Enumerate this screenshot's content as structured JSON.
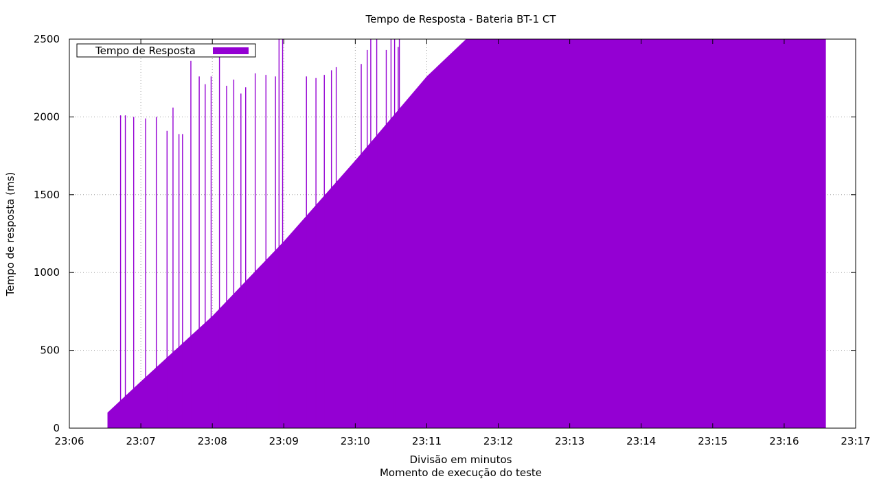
{
  "chart_data": {
    "type": "area",
    "title": "Tempo de Resposta - Bateria BT-1 CT",
    "xlabel": "Divisão em minutos",
    "xlabel2": "Momento de execução do teste",
    "ylabel": "Tempo de resposta (ms)",
    "x_ticks": [
      "23:06",
      "23:07",
      "23:08",
      "23:09",
      "23:10",
      "23:11",
      "23:12",
      "23:13",
      "23:14",
      "23:15",
      "23:16",
      "23:17"
    ],
    "x_range": [
      "23:06",
      "23:17"
    ],
    "y_ticks": [
      0,
      500,
      1000,
      1500,
      2000,
      2500
    ],
    "ylim": [
      0,
      2500
    ],
    "grid": true,
    "legend_position": "top-left",
    "series": [
      {
        "name": "Tempo de Resposta",
        "color": "#9400d3",
        "start": "23:06:32",
        "end": "23:16:35",
        "envelope": [
          {
            "x": "23:06:32",
            "y": 100
          },
          {
            "x": "23:07:00",
            "y": 300
          },
          {
            "x": "23:08:00",
            "y": 720
          },
          {
            "x": "23:09:00",
            "y": 1200
          },
          {
            "x": "23:10:00",
            "y": 1720
          },
          {
            "x": "23:11:00",
            "y": 2260
          },
          {
            "x": "23:11:33",
            "y": 2500
          },
          {
            "x": "23:16:35",
            "y": 2500
          }
        ],
        "spikes": [
          {
            "x": "23:06:43",
            "y": 2010
          },
          {
            "x": "23:06:47",
            "y": 2010
          },
          {
            "x": "23:06:54",
            "y": 2000
          },
          {
            "x": "23:07:04",
            "y": 1990
          },
          {
            "x": "23:07:13",
            "y": 2000
          },
          {
            "x": "23:07:22",
            "y": 1910
          },
          {
            "x": "23:07:27",
            "y": 2060
          },
          {
            "x": "23:07:32",
            "y": 1890
          },
          {
            "x": "23:07:35",
            "y": 1890
          },
          {
            "x": "23:07:42",
            "y": 2360
          },
          {
            "x": "23:07:49",
            "y": 2260
          },
          {
            "x": "23:07:54",
            "y": 2210
          },
          {
            "x": "23:07:59",
            "y": 2260
          },
          {
            "x": "23:08:06",
            "y": 2440
          },
          {
            "x": "23:08:12",
            "y": 2200
          },
          {
            "x": "23:08:18",
            "y": 2240
          },
          {
            "x": "23:08:24",
            "y": 2150
          },
          {
            "x": "23:08:28",
            "y": 2190
          },
          {
            "x": "23:08:36",
            "y": 2280
          },
          {
            "x": "23:08:45",
            "y": 2270
          },
          {
            "x": "23:08:53",
            "y": 2260
          },
          {
            "x": "23:08:56",
            "y": 2500
          },
          {
            "x": "23:08:59",
            "y": 2500
          },
          {
            "x": "23:09:19",
            "y": 2260
          },
          {
            "x": "23:09:27",
            "y": 2250
          },
          {
            "x": "23:09:34",
            "y": 2270
          },
          {
            "x": "23:09:40",
            "y": 2300
          },
          {
            "x": "23:09:44",
            "y": 2320
          },
          {
            "x": "23:10:05",
            "y": 2340
          },
          {
            "x": "23:10:10",
            "y": 2430
          },
          {
            "x": "23:10:13",
            "y": 2500
          },
          {
            "x": "23:10:18",
            "y": 2500
          },
          {
            "x": "23:10:26",
            "y": 2430
          },
          {
            "x": "23:10:30",
            "y": 2500
          },
          {
            "x": "23:10:33",
            "y": 2500
          },
          {
            "x": "23:10:36",
            "y": 2450
          },
          {
            "x": "23:10:37",
            "y": 2500
          }
        ]
      }
    ]
  }
}
